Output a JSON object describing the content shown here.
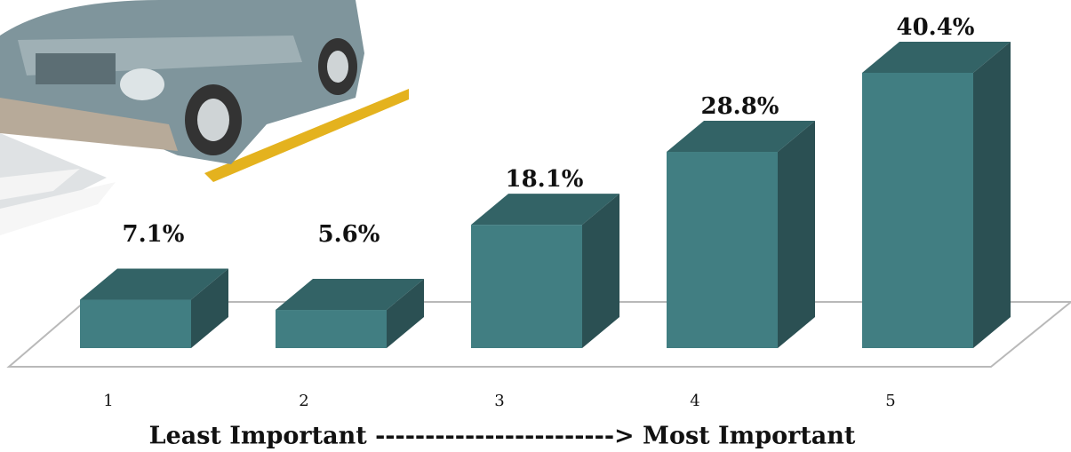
{
  "chart_data": {
    "type": "bar3d",
    "x_label": "Least Important ------------------------> Most Important",
    "categories": [
      "1",
      "2",
      "3",
      "4",
      "5"
    ],
    "values": [
      7.1,
      5.6,
      18.1,
      28.8,
      40.4
    ],
    "value_labels": [
      "7.1%",
      "5.6%",
      "18.1%",
      "28.8%",
      "40.4%"
    ],
    "color": "#417e82"
  }
}
